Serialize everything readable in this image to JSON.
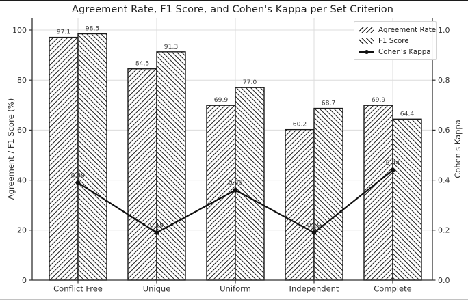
{
  "chart_data": {
    "type": "bar+line",
    "title": "Agreement Rate, F1 Score, and Cohen's Kappa per Set Criterion",
    "categories": [
      "Conflict Free",
      "Unique",
      "Uniform",
      "Independent",
      "Complete"
    ],
    "bar_series": [
      {
        "name": "Agreement Rate",
        "hatch": "/",
        "values": [
          97.1,
          84.5,
          69.9,
          60.2,
          69.9
        ]
      },
      {
        "name": "F1 Score",
        "hatch": "\\",
        "values": [
          98.5,
          91.3,
          77.0,
          68.7,
          64.4
        ]
      }
    ],
    "line_series": {
      "name": "Cohen's Kappa",
      "axis": "right",
      "values": [
        0.39,
        0.19,
        0.36,
        0.19,
        0.44
      ]
    },
    "left_axis": {
      "label": "Agreement / F1 Score (%)",
      "ticks": [
        0,
        20,
        40,
        60,
        80,
        100
      ],
      "range": [
        0,
        100
      ]
    },
    "right_axis": {
      "label": "Cohen's Kappa",
      "tick_labels": [
        "0.0",
        "0.2",
        "0.4",
        "0.6",
        "0.8",
        "1.0"
      ],
      "range": [
        0,
        1
      ]
    },
    "grid": true,
    "legend_position": "upper right",
    "colors": {
      "bar_fill": "#ffffff",
      "bar_edge": "#1a1a1a",
      "hatch": "#2a2a2a",
      "line": "#111111",
      "grid": "#dcdcdc",
      "spine": "#333333",
      "tick_text": "#333333",
      "value_label_text": "#3c3c3c"
    }
  }
}
